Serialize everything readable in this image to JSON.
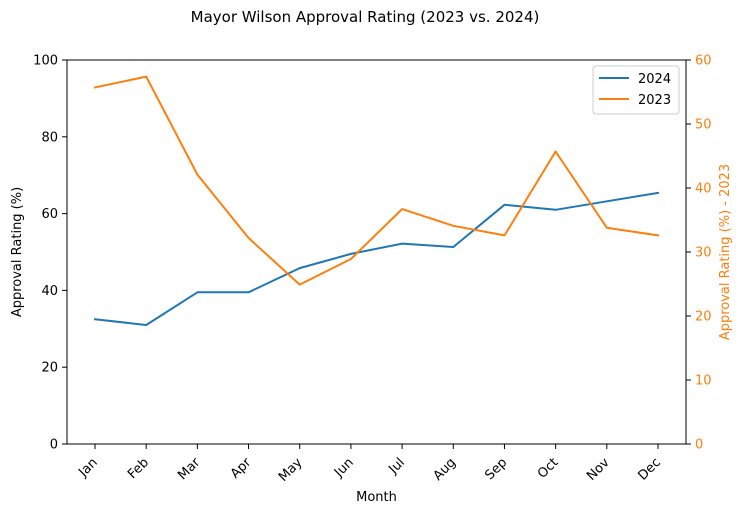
{
  "chart_data": {
    "type": "line",
    "title": "Mayor Wilson Approval Rating (2023 vs. 2024)",
    "xlabel": "Month",
    "ylabel": "Approval Rating (%)",
    "ylabel_right": "Approval Rating (%) - 2023",
    "categories": [
      "Jan",
      "Feb",
      "Mar",
      "Apr",
      "May",
      "Jun",
      "Jul",
      "Aug",
      "Sep",
      "Oct",
      "Nov",
      "Dec"
    ],
    "ylim": [
      0,
      100
    ],
    "ylim_right": [
      0,
      60
    ],
    "yticks": [
      0,
      20,
      40,
      60,
      80,
      100
    ],
    "yticks_right": [
      0,
      10,
      20,
      30,
      40,
      50,
      60
    ],
    "series": [
      {
        "name": "2024",
        "axis": "left",
        "color": "#1f77b4",
        "values": [
          32.5,
          31.0,
          39.5,
          39.5,
          45.8,
          49.5,
          52.2,
          51.3,
          62.3,
          61.0,
          63.2,
          65.4
        ]
      },
      {
        "name": "2023",
        "axis": "right",
        "color": "#ff7f0e",
        "values": [
          55.7,
          57.4,
          42.1,
          32.2,
          24.9,
          28.9,
          36.7,
          34.1,
          32.6,
          45.7,
          33.8,
          32.6
        ]
      }
    ],
    "legend": "top-right",
    "grid": false,
    "x_tick_rotation": 45
  }
}
